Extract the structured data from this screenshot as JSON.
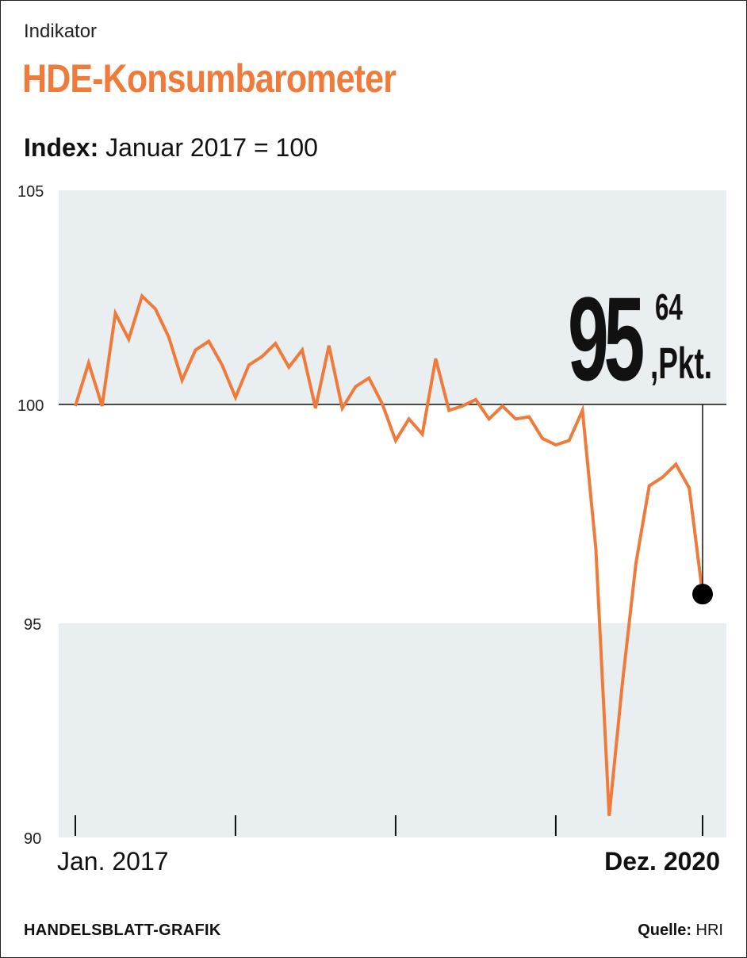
{
  "header": {
    "kicker": "Indikator",
    "title": "HDE-Konsumbarometer",
    "subtitle_bold": "Index:",
    "subtitle_rest": "Januar 2017 = 100"
  },
  "callout": {
    "integer": "95",
    "decimal": "64",
    "unit": ",Pkt."
  },
  "footer": {
    "left": "HANDELSBLATT-GRAFIK",
    "source_bold": "Quelle:",
    "source_rest": "HRI"
  },
  "colors": {
    "line": "#f07a3a",
    "band": "#e9eef0",
    "title": "#f07a3a",
    "marker": "#000000"
  },
  "chart_data": {
    "type": "line",
    "title": "HDE-Konsumbarometer",
    "subtitle": "Index: Januar 2017 = 100",
    "xlabel": "",
    "ylabel": "",
    "x_start_label": "Jan. 2017",
    "x_end_label": "Dez. 2020",
    "ylim": [
      90,
      105
    ],
    "yticks": [
      "90",
      "95",
      "100",
      "105"
    ],
    "reference_line": 100,
    "shaded_bands": [
      [
        95,
        100
      ]
    ],
    "series": [
      {
        "values": [
          100.0,
          101.0,
          100.0,
          102.15,
          101.55,
          102.55,
          102.25,
          101.6,
          100.6,
          101.3,
          101.5,
          100.95,
          100.2,
          100.95,
          101.15,
          101.45,
          100.9,
          101.3,
          99.95,
          101.4,
          99.95,
          100.45,
          100.65,
          100.05,
          99.2,
          99.7,
          99.35,
          101.1,
          99.9,
          100.0,
          100.15,
          99.7,
          100.0,
          99.7,
          99.75,
          99.25,
          99.1,
          99.2,
          99.9,
          96.7,
          90.5,
          93.6,
          96.35,
          98.15,
          98.35,
          98.65,
          98.1,
          95.64
        ]
      }
    ],
    "last_value": 95.64,
    "legend": "none",
    "grid": false
  }
}
